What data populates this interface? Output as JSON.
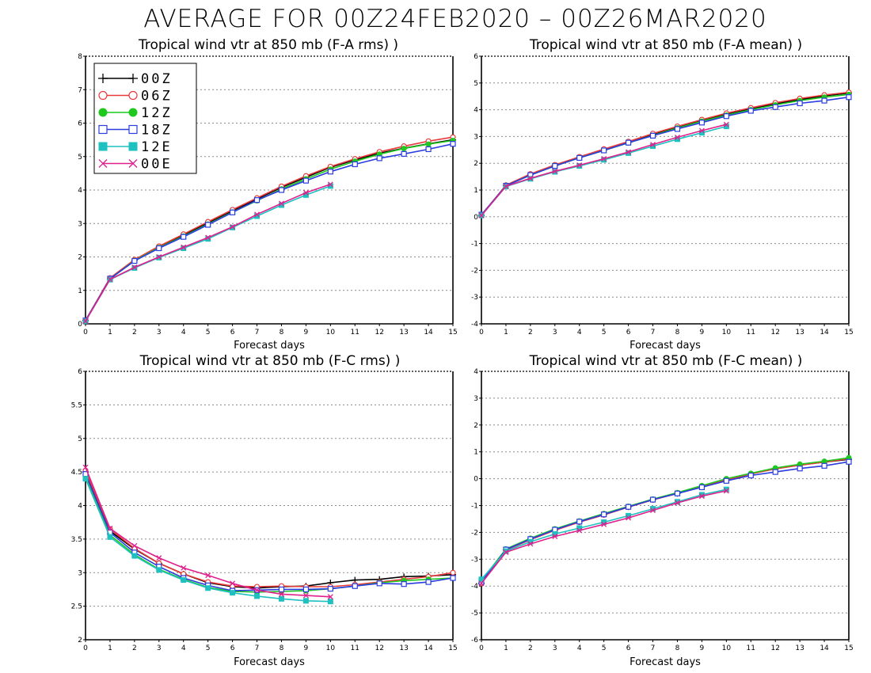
{
  "title": "AVERAGE FOR 00Z24FEB2020 – 00Z26MAR2020",
  "legend": [
    {
      "name": "00Z",
      "color": "#000000",
      "marker": "plus"
    },
    {
      "name": "06Z",
      "color": "#e83a3a",
      "marker": "circle-open"
    },
    {
      "name": "12Z",
      "color": "#1ec81e",
      "marker": "circle-filled"
    },
    {
      "name": "18Z",
      "color": "#2a3ce0",
      "marker": "square-open"
    },
    {
      "name": "12E",
      "color": "#1ec0c0",
      "marker": "square-filled"
    },
    {
      "name": "00E",
      "color": "#e0208c",
      "marker": "x"
    }
  ],
  "chart_data": [
    {
      "type": "line",
      "title": "Tropical wind vtr at 850 mb (F-A rms) )",
      "xlabel": "Forecast days",
      "ylabel": "",
      "xlim": [
        0,
        15
      ],
      "ylim": [
        0,
        8
      ],
      "yticks": [
        "0",
        "1",
        "2",
        "3",
        "4",
        "5",
        "6",
        "7",
        "8"
      ],
      "xticks": [
        "0",
        "1",
        "2",
        "3",
        "4",
        "5",
        "6",
        "7",
        "8",
        "9",
        "10",
        "11",
        "12",
        "13",
        "14",
        "15"
      ],
      "grid": true,
      "legend_position": "top-left",
      "series": [
        {
          "name": "00Z",
          "x": [
            0,
            1,
            2,
            3,
            4,
            5,
            6,
            7,
            8,
            9,
            10,
            11,
            12,
            13,
            14,
            15
          ],
          "values": [
            0.1,
            1.35,
            1.9,
            2.3,
            2.65,
            3.02,
            3.38,
            3.73,
            4.08,
            4.38,
            4.68,
            4.9,
            5.1,
            5.25,
            5.38,
            5.5
          ]
        },
        {
          "name": "06Z",
          "x": [
            0,
            1,
            2,
            3,
            4,
            5,
            6,
            7,
            8,
            9,
            10,
            11,
            12,
            13,
            14,
            15
          ],
          "values": [
            0.1,
            1.37,
            1.92,
            2.32,
            2.68,
            3.05,
            3.41,
            3.76,
            4.11,
            4.42,
            4.7,
            4.93,
            5.14,
            5.31,
            5.46,
            5.58
          ]
        },
        {
          "name": "12Z",
          "x": [
            0,
            1,
            2,
            3,
            4,
            5,
            6,
            7,
            8,
            9,
            10,
            11,
            12,
            13,
            14,
            15
          ],
          "values": [
            0.1,
            1.34,
            1.89,
            2.28,
            2.62,
            2.98,
            3.34,
            3.68,
            4.03,
            4.33,
            4.62,
            4.86,
            5.07,
            5.24,
            5.37,
            5.48
          ]
        },
        {
          "name": "18Z",
          "x": [
            0,
            1,
            2,
            3,
            4,
            5,
            6,
            7,
            8,
            9,
            10,
            11,
            12,
            13,
            14,
            15
          ],
          "values": [
            0.1,
            1.35,
            1.88,
            2.26,
            2.6,
            2.96,
            3.33,
            3.7,
            4.0,
            4.28,
            4.55,
            4.77,
            4.95,
            5.08,
            5.22,
            5.38
          ]
        },
        {
          "name": "12E",
          "x": [
            0,
            1,
            2,
            3,
            4,
            5,
            6,
            7,
            8,
            9,
            10
          ],
          "values": [
            0.08,
            1.32,
            1.67,
            1.98,
            2.26,
            2.54,
            2.88,
            3.22,
            3.55,
            3.85,
            4.12
          ]
        },
        {
          "name": "00E",
          "x": [
            0,
            1,
            2,
            3,
            4,
            5,
            6,
            7,
            8,
            9,
            10
          ],
          "values": [
            0.08,
            1.33,
            1.69,
            2.0,
            2.29,
            2.58,
            2.9,
            3.27,
            3.6,
            3.92,
            4.17
          ]
        }
      ]
    },
    {
      "type": "line",
      "title": "Tropical wind vtr at 850 mb (F-A mean) )",
      "xlabel": "Forecast days",
      "ylabel": "",
      "xlim": [
        0,
        15
      ],
      "ylim": [
        -4,
        6
      ],
      "yticks": [
        "-4",
        "-3",
        "-2",
        "-1",
        "0",
        "1",
        "2",
        "3",
        "4",
        "5",
        "6"
      ],
      "xticks": [
        "0",
        "1",
        "2",
        "3",
        "4",
        "5",
        "6",
        "7",
        "8",
        "9",
        "10",
        "11",
        "12",
        "13",
        "14",
        "15"
      ],
      "grid": true,
      "series": [
        {
          "name": "00Z",
          "x": [
            0,
            1,
            2,
            3,
            4,
            5,
            6,
            7,
            8,
            9,
            10,
            11,
            12,
            13,
            14,
            15
          ],
          "values": [
            0.05,
            1.17,
            1.58,
            1.92,
            2.22,
            2.5,
            2.78,
            3.08,
            3.35,
            3.6,
            3.84,
            4.04,
            4.22,
            4.38,
            4.52,
            4.62
          ]
        },
        {
          "name": "06Z",
          "x": [
            0,
            1,
            2,
            3,
            4,
            5,
            6,
            7,
            8,
            9,
            10,
            11,
            12,
            13,
            14,
            15
          ],
          "values": [
            0.05,
            1.18,
            1.6,
            1.94,
            2.24,
            2.53,
            2.81,
            3.11,
            3.38,
            3.63,
            3.87,
            4.07,
            4.26,
            4.42,
            4.55,
            4.65
          ]
        },
        {
          "name": "12Z",
          "x": [
            0,
            1,
            2,
            3,
            4,
            5,
            6,
            7,
            8,
            9,
            10,
            11,
            12,
            13,
            14,
            15
          ],
          "values": [
            0.05,
            1.16,
            1.56,
            1.9,
            2.2,
            2.48,
            2.76,
            3.04,
            3.32,
            3.57,
            3.8,
            4.0,
            4.18,
            4.34,
            4.47,
            4.57
          ]
        },
        {
          "name": "18Z",
          "x": [
            0,
            1,
            2,
            3,
            4,
            5,
            6,
            7,
            8,
            9,
            10,
            11,
            12,
            13,
            14,
            15
          ],
          "values": [
            0.08,
            1.16,
            1.56,
            1.9,
            2.2,
            2.48,
            2.77,
            3.03,
            3.28,
            3.52,
            3.76,
            3.96,
            4.1,
            4.24,
            4.34,
            4.47
          ]
        },
        {
          "name": "12E",
          "x": [
            0,
            1,
            2,
            3,
            4,
            5,
            6,
            7,
            8,
            9,
            10
          ],
          "values": [
            0.05,
            1.13,
            1.42,
            1.68,
            1.9,
            2.13,
            2.38,
            2.64,
            2.9,
            3.14,
            3.38
          ]
        },
        {
          "name": "00E",
          "x": [
            0,
            1,
            2,
            3,
            4,
            5,
            6,
            7,
            8,
            9,
            10
          ],
          "values": [
            0.05,
            1.14,
            1.44,
            1.7,
            1.93,
            2.17,
            2.42,
            2.7,
            2.97,
            3.22,
            3.45
          ]
        }
      ]
    },
    {
      "type": "line",
      "title": "Tropical wind vtr at 850 mb (F-C rms) )",
      "xlabel": "Forecast days",
      "ylabel": "",
      "xlim": [
        0,
        15
      ],
      "ylim": [
        2,
        6
      ],
      "yticks": [
        "2",
        "2.5",
        "3",
        "3.5",
        "4",
        "4.5",
        "5",
        "5.5",
        "6"
      ],
      "xticks": [
        "0",
        "1",
        "2",
        "3",
        "4",
        "5",
        "6",
        "7",
        "8",
        "9",
        "10",
        "11",
        "12",
        "13",
        "14",
        "15"
      ],
      "grid": true,
      "series": [
        {
          "name": "00Z",
          "x": [
            0,
            1,
            2,
            3,
            4,
            5,
            6,
            7,
            8,
            9,
            10,
            11,
            12,
            13,
            14,
            15
          ],
          "values": [
            4.5,
            3.62,
            3.35,
            3.14,
            2.98,
            2.85,
            2.79,
            2.77,
            2.79,
            2.8,
            2.85,
            2.89,
            2.9,
            2.94,
            2.95,
            2.97
          ]
        },
        {
          "name": "06Z",
          "x": [
            0,
            1,
            2,
            3,
            4,
            5,
            6,
            7,
            8,
            9,
            10,
            11,
            12,
            13,
            14,
            15
          ],
          "values": [
            4.52,
            3.65,
            3.36,
            3.14,
            2.98,
            2.86,
            2.8,
            2.79,
            2.8,
            2.79,
            2.79,
            2.82,
            2.86,
            2.9,
            2.94,
            3.0
          ]
        },
        {
          "name": "12Z",
          "x": [
            0,
            1,
            2,
            3,
            4,
            5,
            6,
            7,
            8,
            9,
            10,
            11,
            12,
            13,
            14,
            15
          ],
          "values": [
            4.42,
            3.56,
            3.27,
            3.05,
            2.9,
            2.78,
            2.72,
            2.71,
            2.72,
            2.73,
            2.76,
            2.8,
            2.85,
            2.88,
            2.9,
            2.92
          ]
        },
        {
          "name": "18Z",
          "x": [
            0,
            1,
            2,
            3,
            4,
            5,
            6,
            7,
            8,
            9,
            10,
            11,
            12,
            13,
            14,
            15
          ],
          "values": [
            4.47,
            3.6,
            3.3,
            3.09,
            2.92,
            2.81,
            2.73,
            2.74,
            2.75,
            2.75,
            2.76,
            2.8,
            2.84,
            2.83,
            2.86,
            2.92
          ]
        },
        {
          "name": "12E",
          "x": [
            0,
            1,
            2,
            3,
            4,
            5,
            6,
            7,
            8,
            9,
            10
          ],
          "values": [
            4.4,
            3.53,
            3.25,
            3.04,
            2.89,
            2.77,
            2.7,
            2.65,
            2.61,
            2.58,
            2.57
          ]
        },
        {
          "name": "00E",
          "x": [
            0,
            1,
            2,
            3,
            4,
            5,
            6,
            7,
            8,
            9,
            10
          ],
          "values": [
            4.57,
            3.66,
            3.4,
            3.22,
            3.07,
            2.96,
            2.84,
            2.74,
            2.68,
            2.66,
            2.64
          ]
        }
      ]
    },
    {
      "type": "line",
      "title": "Tropical wind vtr at 850 mb (F-C mean) )",
      "xlabel": "Forecast days",
      "ylabel": "",
      "xlim": [
        0,
        15
      ],
      "ylim": [
        -6,
        4
      ],
      "yticks": [
        "-6",
        "-5",
        "-4",
        "-3",
        "-2",
        "-1",
        "0",
        "1",
        "2",
        "3",
        "4"
      ],
      "xticks": [
        "0",
        "1",
        "2",
        "3",
        "4",
        "5",
        "6",
        "7",
        "8",
        "9",
        "10",
        "11",
        "12",
        "13",
        "14",
        "15"
      ],
      "grid": true,
      "series": [
        {
          "name": "00Z",
          "x": [
            0,
            1,
            2,
            3,
            4,
            5,
            6,
            7,
            8,
            9,
            10,
            11,
            12,
            13,
            14,
            15
          ],
          "values": [
            -3.9,
            -2.65,
            -2.25,
            -1.9,
            -1.6,
            -1.33,
            -1.05,
            -0.78,
            -0.55,
            -0.3,
            -0.05,
            0.18,
            0.37,
            0.51,
            0.62,
            0.72
          ]
        },
        {
          "name": "06Z",
          "x": [
            0,
            1,
            2,
            3,
            4,
            5,
            6,
            7,
            8,
            9,
            10,
            11,
            12,
            13,
            14,
            15
          ],
          "values": [
            -3.9,
            -2.66,
            -2.27,
            -1.92,
            -1.62,
            -1.35,
            -1.06,
            -0.79,
            -0.55,
            -0.3,
            -0.04,
            0.18,
            0.37,
            0.5,
            0.62,
            0.74
          ]
        },
        {
          "name": "12Z",
          "x": [
            0,
            1,
            2,
            3,
            4,
            5,
            6,
            7,
            8,
            9,
            10,
            11,
            12,
            13,
            14,
            15
          ],
          "values": [
            -3.8,
            -2.62,
            -2.22,
            -1.87,
            -1.58,
            -1.3,
            -1.03,
            -0.76,
            -0.52,
            -0.26,
            0.0,
            0.2,
            0.4,
            0.54,
            0.65,
            0.78
          ]
        },
        {
          "name": "18Z",
          "x": [
            0,
            1,
            2,
            3,
            4,
            5,
            6,
            7,
            8,
            9,
            10,
            11,
            12,
            13,
            14,
            15
          ],
          "values": [
            -3.85,
            -2.64,
            -2.25,
            -1.9,
            -1.6,
            -1.33,
            -1.05,
            -0.78,
            -0.55,
            -0.32,
            -0.08,
            0.12,
            0.25,
            0.38,
            0.48,
            0.63
          ]
        },
        {
          "name": "12E",
          "x": [
            0,
            1,
            2,
            3,
            4,
            5,
            6,
            7,
            8,
            9,
            10
          ],
          "values": [
            -3.75,
            -2.7,
            -2.35,
            -2.06,
            -1.84,
            -1.62,
            -1.38,
            -1.12,
            -0.86,
            -0.6,
            -0.4
          ]
        },
        {
          "name": "00E",
          "x": [
            0,
            1,
            2,
            3,
            4,
            5,
            6,
            7,
            8,
            9,
            10
          ],
          "values": [
            -3.9,
            -2.74,
            -2.43,
            -2.15,
            -1.93,
            -1.7,
            -1.46,
            -1.18,
            -0.9,
            -0.65,
            -0.45
          ]
        }
      ]
    }
  ]
}
